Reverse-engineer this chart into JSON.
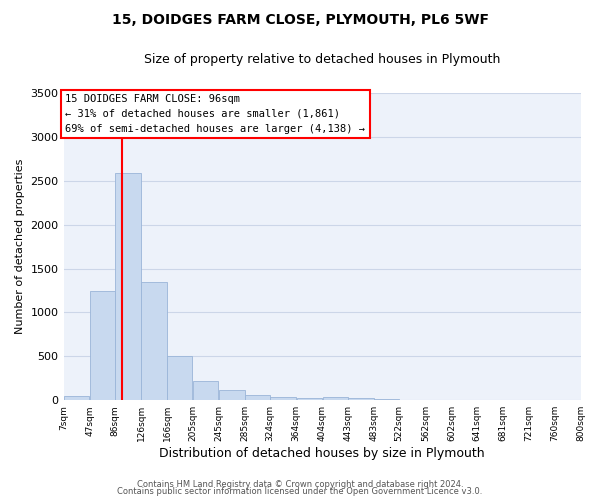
{
  "title": "15, DOIDGES FARM CLOSE, PLYMOUTH, PL6 5WF",
  "subtitle": "Size of property relative to detached houses in Plymouth",
  "xlabel": "Distribution of detached houses by size in Plymouth",
  "ylabel": "Number of detached properties",
  "bar_color": "#c8d9ef",
  "bar_edge_color": "#9ab5d8",
  "background_color": "#edf2fa",
  "grid_color": "#ccd6e8",
  "red_line_x": 96,
  "annotation_title": "15 DOIDGES FARM CLOSE: 96sqm",
  "annotation_line1": "← 31% of detached houses are smaller (1,861)",
  "annotation_line2": "69% of semi-detached houses are larger (4,138) →",
  "footer1": "Contains HM Land Registry data © Crown copyright and database right 2024.",
  "footer2": "Contains public sector information licensed under the Open Government Licence v3.0.",
  "bin_edges": [
    7,
    47,
    86,
    126,
    166,
    205,
    245,
    285,
    324,
    364,
    404,
    443,
    483,
    522,
    562,
    602,
    641,
    681,
    721,
    760,
    800
  ],
  "bin_labels": [
    "7sqm",
    "47sqm",
    "86sqm",
    "126sqm",
    "166sqm",
    "205sqm",
    "245sqm",
    "285sqm",
    "324sqm",
    "364sqm",
    "404sqm",
    "443sqm",
    "483sqm",
    "522sqm",
    "562sqm",
    "602sqm",
    "641sqm",
    "681sqm",
    "721sqm",
    "760sqm",
    "800sqm"
  ],
  "counts": [
    50,
    1250,
    2590,
    1350,
    500,
    215,
    115,
    55,
    40,
    25,
    40,
    25,
    10,
    0,
    0,
    0,
    0,
    0,
    0,
    0
  ],
  "ylim": [
    0,
    3500
  ],
  "yticks": [
    0,
    500,
    1000,
    1500,
    2000,
    2500,
    3000,
    3500
  ]
}
